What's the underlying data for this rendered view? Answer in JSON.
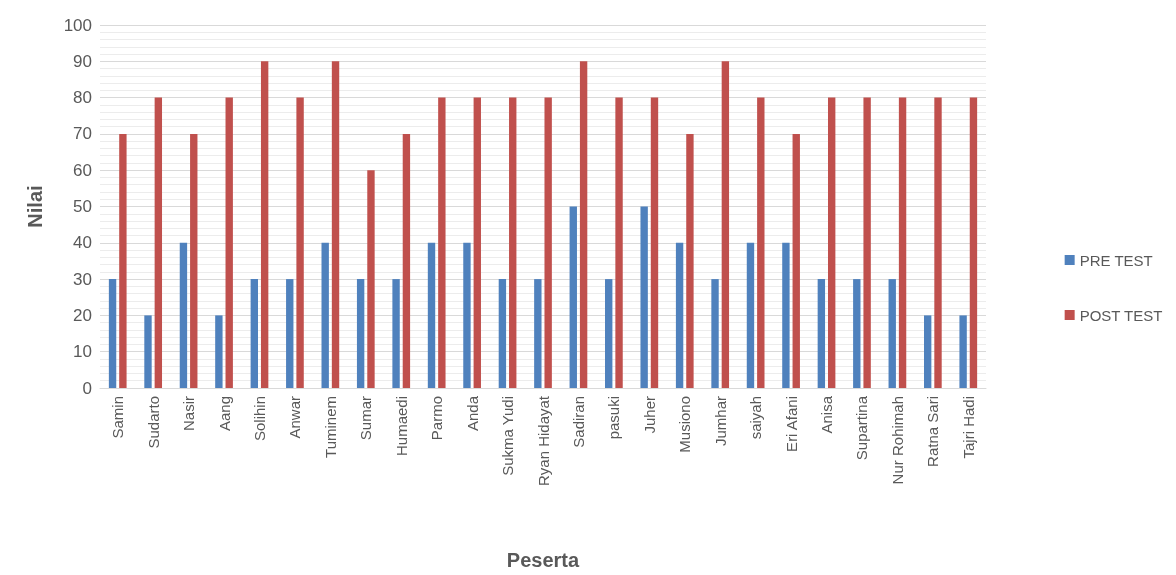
{
  "chart_data": {
    "type": "bar",
    "xlabel": "Peserta",
    "ylabel": "Nilai",
    "categories": [
      "Samin",
      "Sudarto",
      "Nasir",
      "Aang",
      "Solihin",
      "Anwar",
      "Tuminem",
      "Sumar",
      "Humaedi",
      "Parmo",
      "Anda",
      "Sukma Yudi",
      "Ryan Hidayat",
      "Sadiran",
      "pasuki",
      "Juher",
      "Musiono",
      "Jumhar",
      "saiyah",
      "Eri Afani",
      "Anisa",
      "Supartina",
      "Nur Rohimah",
      "Ratna Sari",
      "Tajri Hadi"
    ],
    "series": [
      {
        "name": "PRE TEST",
        "color": "#4f81bd",
        "values": [
          30,
          20,
          40,
          20,
          30,
          30,
          40,
          30,
          30,
          40,
          40,
          30,
          30,
          50,
          30,
          50,
          40,
          30,
          40,
          40,
          30,
          30,
          30,
          20,
          20
        ]
      },
      {
        "name": "POST TEST",
        "color": "#c0504d",
        "values": [
          70,
          80,
          70,
          80,
          90,
          80,
          90,
          60,
          70,
          80,
          80,
          80,
          80,
          90,
          80,
          80,
          70,
          90,
          80,
          70,
          80,
          80,
          80,
          80,
          80
        ]
      }
    ],
    "ylim": [
      0,
      100
    ],
    "yticks": [
      0,
      10,
      20,
      30,
      40,
      50,
      60,
      70,
      80,
      90,
      100
    ],
    "grid": "y",
    "legend": "right"
  }
}
